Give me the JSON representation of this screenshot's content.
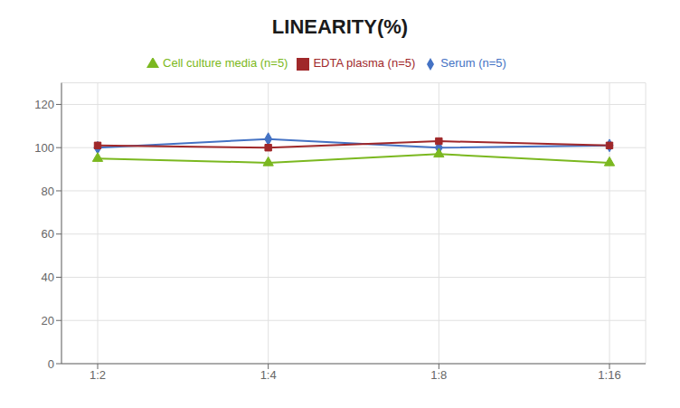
{
  "chart_data": {
    "type": "line",
    "title": "LINEARITY(%)",
    "categories": [
      "1:2",
      "1:4",
      "1:8",
      "1:16"
    ],
    "series": [
      {
        "name": "Serum (n=5)",
        "color": "#4472C4",
        "marker": "diamond",
        "values": [
          100,
          104,
          100,
          101
        ]
      },
      {
        "name": "EDTA plasma (n=5)",
        "color": "#A0282A",
        "marker": "square",
        "values": [
          101,
          100,
          103,
          101
        ]
      },
      {
        "name": "Cell culture media (n=5)",
        "color": "#7BB820",
        "marker": "triangle",
        "values": [
          95,
          93,
          97,
          93
        ]
      }
    ],
    "ylim": [
      0,
      130
    ],
    "yticks": [
      0,
      20,
      40,
      60,
      80,
      100,
      120
    ],
    "grid": true,
    "legend": "top"
  }
}
